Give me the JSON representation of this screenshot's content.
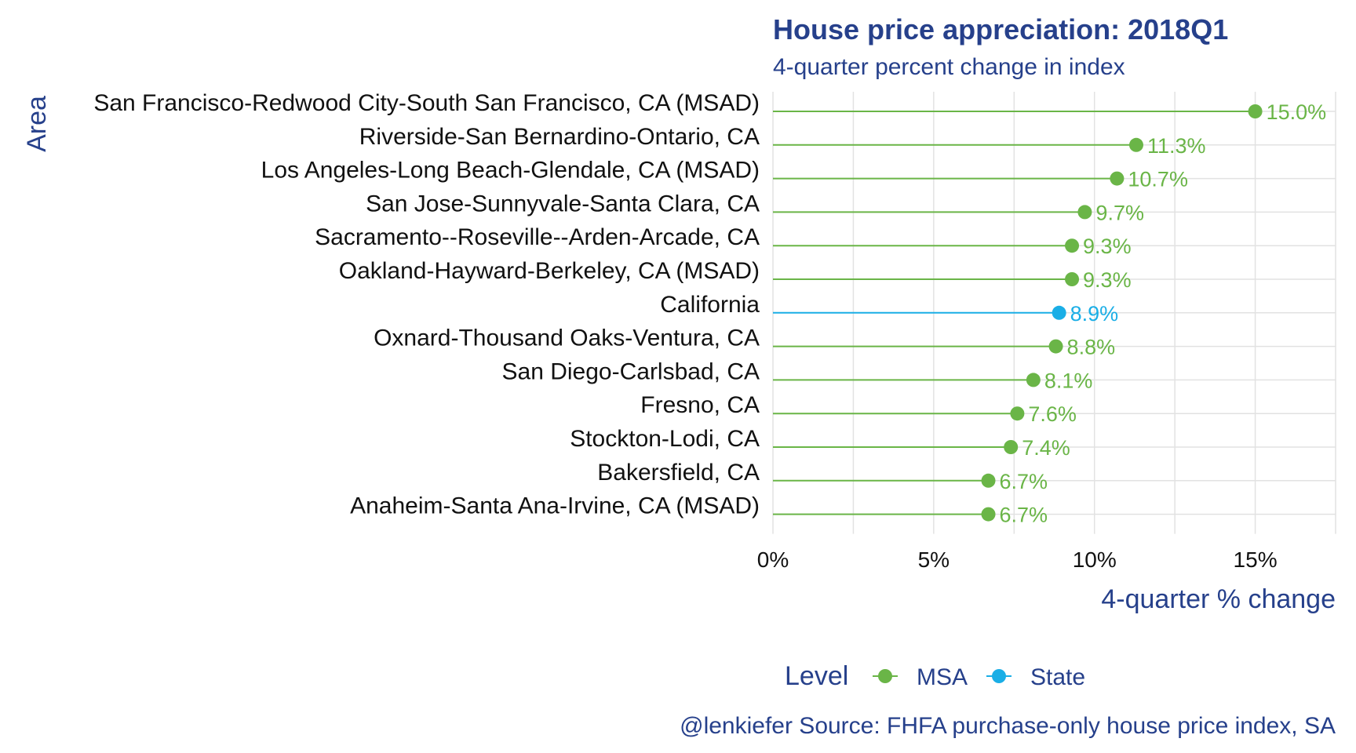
{
  "chart_data": {
    "type": "lollipop",
    "title": "House price appreciation: 2018Q1",
    "subtitle": "4-quarter percent change in index",
    "xlabel": "4-quarter % change",
    "ylabel": "Area",
    "xlim": [
      0,
      17.5
    ],
    "xticks": [
      0,
      5,
      10,
      15
    ],
    "xtick_labels": [
      "0%",
      "5%",
      "10%",
      "15%"
    ],
    "grid": true,
    "legend": {
      "title": "Level",
      "placement": "bottom",
      "items": [
        {
          "name": "MSA",
          "color": "#6ab547"
        },
        {
          "name": "State",
          "color": "#1aaee6"
        }
      ]
    },
    "caption": "@lenkiefer Source: FHFA purchase-only house price index, SA",
    "points": [
      {
        "area": "San Francisco-Redwood City-South San Francisco, CA (MSAD)",
        "value": 15.0,
        "label": "15.0%",
        "level": "MSA"
      },
      {
        "area": "Riverside-San Bernardino-Ontario, CA",
        "value": 11.3,
        "label": "11.3%",
        "level": "MSA"
      },
      {
        "area": "Los Angeles-Long Beach-Glendale, CA (MSAD)",
        "value": 10.7,
        "label": "10.7%",
        "level": "MSA"
      },
      {
        "area": "San Jose-Sunnyvale-Santa Clara, CA",
        "value": 9.7,
        "label": "9.7%",
        "level": "MSA"
      },
      {
        "area": "Sacramento--Roseville--Arden-Arcade, CA",
        "value": 9.3,
        "label": "9.3%",
        "level": "MSA"
      },
      {
        "area": "Oakland-Hayward-Berkeley, CA (MSAD)",
        "value": 9.3,
        "label": "9.3%",
        "level": "MSA"
      },
      {
        "area": "California",
        "value": 8.9,
        "label": "8.9%",
        "level": "State"
      },
      {
        "area": "Oxnard-Thousand Oaks-Ventura, CA",
        "value": 8.8,
        "label": "8.8%",
        "level": "MSA"
      },
      {
        "area": "San Diego-Carlsbad, CA",
        "value": 8.1,
        "label": "8.1%",
        "level": "MSA"
      },
      {
        "area": "Fresno, CA",
        "value": 7.6,
        "label": "7.6%",
        "level": "MSA"
      },
      {
        "area": "Stockton-Lodi, CA",
        "value": 7.4,
        "label": "7.4%",
        "level": "MSA"
      },
      {
        "area": "Bakersfield, CA",
        "value": 6.7,
        "label": "6.7%",
        "level": "MSA"
      },
      {
        "area": "Anaheim-Santa Ana-Irvine, CA (MSAD)",
        "value": 6.7,
        "label": "6.7%",
        "level": "MSA"
      }
    ]
  }
}
